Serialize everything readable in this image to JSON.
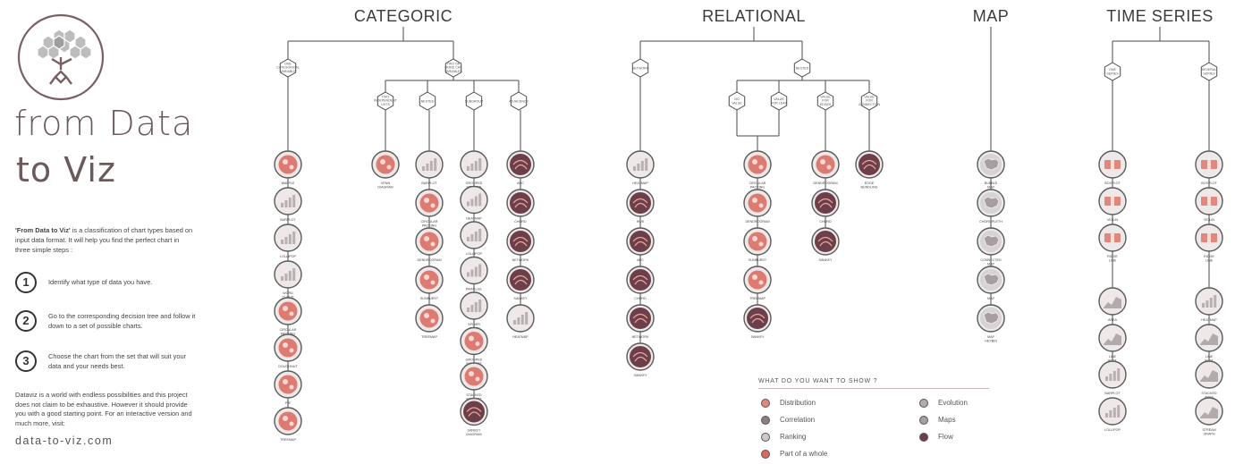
{
  "brand": {
    "line1": "from Data",
    "line2": "to Viz"
  },
  "intro": {
    "bold": "'From Data to Viz'",
    "rest": " is a classification of chart types based on input data format. It will help you find the perfect chart in three simple steps :"
  },
  "steps": [
    {
      "num": "1",
      "text": "Identify what type of data you have."
    },
    {
      "num": "2",
      "text": "Go to the corresponding decision tree and follow it down to a set of possible charts."
    },
    {
      "num": "3",
      "text": "Choose the chart from the set that will suit your data and your needs best."
    }
  ],
  "outro": "Dataviz is a world with endless possibilities and this project does not claim to be exhaustive. However it should provide you with a good starting point. For an interactive version and much more, visit:",
  "url": "data-to-viz.com",
  "colors": {
    "distribution": "#e2877b",
    "correlation": "#8a7f80",
    "ranking": "#cfc6c6",
    "part": "#d9675d",
    "evolution": "#b2aaab",
    "maps": "#a79ea0",
    "flow": "#6d3f4b",
    "line": "#4a4a4a",
    "badge_bg": "#efe8e8"
  },
  "sections": [
    {
      "title": "CATEGORIC",
      "nodes": [
        {
          "id": "c1",
          "label": "ONE\nCATEGORICAL\nVARIABLE"
        },
        {
          "id": "c2",
          "label": "TWO OR\nMORE CAT.\nVARIABLES"
        },
        {
          "id": "c3",
          "label": "TWO\nINDEPENDENT\nLISTS"
        },
        {
          "id": "c4",
          "label": "NESTED"
        },
        {
          "id": "c5",
          "label": "SUBGROUP"
        },
        {
          "id": "c6",
          "label": "ADJACENCY"
        }
      ],
      "columns": [
        {
          "charts": [
            {
              "label": "WAFFLE",
              "cat": "part"
            },
            {
              "label": "BARPLOT",
              "cat": "ranking"
            },
            {
              "label": "LOLLIPOP",
              "cat": "ranking"
            },
            {
              "label": "WORD\nCLOUD",
              "cat": "ranking"
            },
            {
              "label": "CIRCULAR\nPACKING",
              "cat": "part"
            },
            {
              "label": "DOUGHNUT",
              "cat": "part"
            },
            {
              "label": "PIE",
              "cat": "part"
            },
            {
              "label": "TREEMAP",
              "cat": "part"
            }
          ]
        },
        {
          "charts": [
            {
              "label": "VENN\nDIAGRAM",
              "cat": "part"
            }
          ]
        },
        {
          "charts": [
            {
              "label": "BARPLOT",
              "cat": "ranking"
            },
            {
              "label": "CIRCULAR\nPACKING",
              "cat": "part"
            },
            {
              "label": "DENDROGRAM",
              "cat": "part"
            },
            {
              "label": "SUNBURST",
              "cat": "part"
            },
            {
              "label": "TREEMAP",
              "cat": "part"
            }
          ]
        },
        {
          "charts": [
            {
              "label": "GROUPED\nSCATTER",
              "cat": "ranking"
            },
            {
              "label": "HEATMAP",
              "cat": "ranking"
            },
            {
              "label": "LOLLIPOP",
              "cat": "ranking"
            },
            {
              "label": "PARALLEL\nPLOT",
              "cat": "ranking"
            },
            {
              "label": "SPIDER\nPLOT",
              "cat": "ranking"
            },
            {
              "label": "GROUPED\nBARPLOT",
              "cat": "part"
            },
            {
              "label": "STACKED\nBARPLOT",
              "cat": "part"
            },
            {
              "label": "SANKEY\nDIAGRAM",
              "cat": "flow"
            }
          ]
        },
        {
          "charts": [
            {
              "label": "ARC",
              "cat": "flow"
            },
            {
              "label": "CHORD",
              "cat": "flow"
            },
            {
              "label": "NETWORK",
              "cat": "flow"
            },
            {
              "label": "SANKEY",
              "cat": "flow"
            },
            {
              "label": "HEATMAP",
              "cat": "ranking"
            }
          ]
        }
      ]
    },
    {
      "title": "RELATIONAL",
      "nodes": [
        {
          "id": "r1",
          "label": "NETWORK"
        },
        {
          "id": "r2",
          "label": "NESTED"
        },
        {
          "id": "r3",
          "label": "NO\nVALUE"
        },
        {
          "id": "r4",
          "label": "VALUE\nFOR LEAF"
        },
        {
          "id": "r5",
          "label": "VALUE\nFOR\nEDGES"
        },
        {
          "id": "r6",
          "label": "VALUE\nFOR\nCONNECTION"
        }
      ],
      "columns": [
        {
          "charts": [
            {
              "label": "HEATMAP",
              "cat": "ranking"
            },
            {
              "label": "HIVE",
              "cat": "flow"
            },
            {
              "label": "ARC",
              "cat": "flow"
            },
            {
              "label": "CHORD",
              "cat": "flow"
            },
            {
              "label": "NETWORK",
              "cat": "flow"
            },
            {
              "label": "SANKEY",
              "cat": "flow"
            }
          ]
        },
        {
          "charts": [
            {
              "label": "CIRCULAR\nPACKING",
              "cat": "part"
            },
            {
              "label": "DENDROGRAM",
              "cat": "part"
            },
            {
              "label": "SUNBURST",
              "cat": "part"
            },
            {
              "label": "TREEMAP",
              "cat": "part"
            },
            {
              "label": "SANKEY",
              "cat": "flow"
            }
          ]
        },
        {
          "charts": [
            {
              "label": "DENDROGRAM",
              "cat": "part"
            },
            {
              "label": "CHORD",
              "cat": "flow"
            },
            {
              "label": "SANKEY",
              "cat": "flow"
            }
          ]
        },
        {
          "charts": [
            {
              "label": "EDGE\nBUNDLING",
              "cat": "flow"
            }
          ]
        }
      ]
    },
    {
      "title": "MAP",
      "nodes": [],
      "columns": [
        {
          "charts": [
            {
              "label": "BUBBLE\nMAP",
              "cat": "maps"
            },
            {
              "label": "CHOROPLETH",
              "cat": "maps"
            },
            {
              "label": "CONNECTED\nMAP",
              "cat": "maps"
            },
            {
              "label": "MAP",
              "cat": "maps"
            },
            {
              "label": "MAP\nHEXBIN",
              "cat": "maps"
            }
          ]
        }
      ]
    },
    {
      "title": "TIME SERIES",
      "nodes": [
        {
          "id": "t1",
          "label": "ONE\nSERIES"
        },
        {
          "id": "t2",
          "label": "SEVERAL\nSERIES"
        }
      ],
      "columns": [
        {
          "charts": [
            {
              "label": "BOXPLOT",
              "cat": "distribution"
            },
            {
              "label": "VIOLIN",
              "cat": "distribution"
            },
            {
              "label": "RIDGE\nLINE",
              "cat": "distribution"
            },
            {
              "label": "AREA",
              "cat": "evolution"
            },
            {
              "label": "LINE\nPLOT",
              "cat": "evolution"
            },
            {
              "label": "BARPLOT",
              "cat": "ranking"
            },
            {
              "label": "LOLLIPOP",
              "cat": "ranking"
            }
          ]
        },
        {
          "charts": [
            {
              "label": "BOXPLOT",
              "cat": "distribution"
            },
            {
              "label": "VIOLIN",
              "cat": "distribution"
            },
            {
              "label": "RIDGE\nLINE",
              "cat": "distribution"
            },
            {
              "label": "HEATMAP",
              "cat": "ranking"
            },
            {
              "label": "LINE\nPLOT",
              "cat": "evolution"
            },
            {
              "label": "STACKED\nAREA",
              "cat": "evolution"
            },
            {
              "label": "STREAM\nGRAPH",
              "cat": "evolution"
            }
          ]
        }
      ]
    }
  ],
  "legend": {
    "title": "WHAT DO YOU WANT TO SHOW ?",
    "items": [
      {
        "label": "Distribution",
        "cat": "distribution"
      },
      {
        "label": "Correlation",
        "cat": "correlation"
      },
      {
        "label": "Ranking",
        "cat": "ranking"
      },
      {
        "label": "Part of a whole",
        "cat": "part"
      },
      {
        "label": "Evolution",
        "cat": "evolution"
      },
      {
        "label": "Maps",
        "cat": "maps"
      },
      {
        "label": "Flow",
        "cat": "flow"
      }
    ]
  }
}
